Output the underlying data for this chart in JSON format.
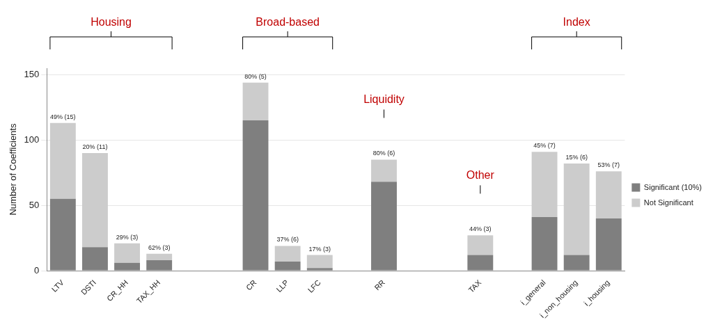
{
  "chart_data": {
    "type": "bar",
    "stacked": true,
    "ylabel": "Number of Coefficients",
    "categories": [
      "LTV",
      "DSTI",
      "CR_HH",
      "TAX_HH",
      null,
      null,
      "CR",
      "LLP",
      "LFC",
      null,
      "RR",
      null,
      null,
      "TAX",
      null,
      "i_general",
      "i_non_housing",
      "i_housing"
    ],
    "series": [
      {
        "name": "Significant (10%)",
        "color": "#7f7f7f",
        "values": [
          55,
          18,
          6,
          8,
          null,
          null,
          115,
          7,
          2,
          null,
          68,
          null,
          null,
          12,
          null,
          41,
          12,
          40
        ]
      },
      {
        "name": "Not Significant",
        "color": "#cccccc",
        "values": [
          58,
          72,
          15,
          5,
          null,
          null,
          29,
          12,
          10,
          null,
          17,
          null,
          null,
          15,
          null,
          50,
          70,
          36
        ]
      }
    ],
    "annotations": [
      "Housing",
      "Broad-based",
      "Liquidity",
      "Other",
      "Index",
      {
        "text": "49% (15)",
        "x": "LTV",
        "y": 113
      },
      {
        "text": "20% (11)",
        "x": "DSTI",
        "y": 90
      },
      {
        "text": "29% (3)",
        "x": "CR_HH",
        "y": 21
      },
      {
        "text": "62% (3)",
        "x": "TAX_HH",
        "y": 13
      },
      {
        "text": "80% (5)",
        "x": "CR",
        "y": 144
      },
      {
        "text": "37% (6)",
        "x": "LLP",
        "y": 19
      },
      {
        "text": "17% (3)",
        "x": "LFC",
        "y": 12
      },
      {
        "text": "80% (6)",
        "x": "RR",
        "y": 85
      },
      {
        "text": "44% (3)",
        "x": "TAX",
        "y": 27
      },
      {
        "text": "45% (7)",
        "x": "i_general",
        "y": 91
      },
      {
        "text": "15% (6)",
        "x": "i_non_housing",
        "y": 82
      },
      {
        "text": "53% (7)",
        "x": "i_housing",
        "y": 76
      }
    ],
    "ylim": [
      0,
      155
    ],
    "yticks": [
      0,
      50,
      100,
      150
    ],
    "grid": "y",
    "legend": "right"
  }
}
